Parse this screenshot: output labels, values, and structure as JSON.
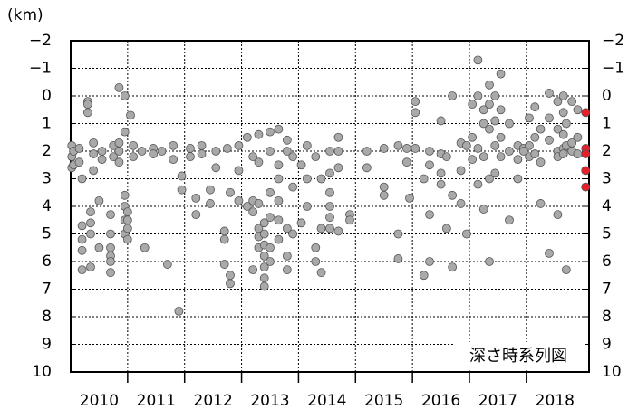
{
  "chart_data": {
    "type": "scatter",
    "y_unit": "(km)",
    "annotation": "深さ時系列図",
    "xlim": [
      2010,
      2019.1
    ],
    "ylim": [
      -2,
      10
    ],
    "y_inverted": true,
    "yticks": [
      {
        "value": -2,
        "label": "−2"
      },
      {
        "value": -1,
        "label": "−1"
      },
      0,
      1,
      2,
      3,
      4,
      5,
      6,
      7,
      8,
      9,
      10
    ],
    "xticks": [
      {
        "value": 2010.5,
        "label": "2010"
      },
      {
        "value": 2011.5,
        "label": "2011"
      },
      {
        "value": 2012.5,
        "label": "2012"
      },
      {
        "value": 2013.5,
        "label": "2013"
      },
      {
        "value": 2014.5,
        "label": "2014"
      },
      {
        "value": 2015.5,
        "label": "2015"
      },
      {
        "value": 2016.5,
        "label": "2016"
      },
      {
        "value": 2017.5,
        "label": "2017"
      },
      {
        "value": 2018.5,
        "label": "2018"
      }
    ],
    "xgrid": [
      2011,
      2012,
      2013,
      2014,
      2015,
      2016,
      2017,
      2018
    ],
    "grid": true,
    "series": [
      {
        "color": "#a9a9a9",
        "x": [
          2010.02,
          2010.02,
          2010.02,
          2010.05,
          2010.05,
          2010.15,
          2010.15,
          2010.2,
          2010.2,
          2010.2,
          2010.2,
          2010.2,
          2010.3,
          2010.3,
          2010.3,
          2010.35,
          2010.35,
          2010.35,
          2010.35,
          2010.4,
          2010.4,
          2010.4,
          2010.5,
          2010.5,
          2010.55,
          2010.55,
          2010.7,
          2010.7,
          2010.7,
          2010.7,
          2010.7,
          2010.7,
          2010.75,
          2010.75,
          2010.85,
          2010.85,
          2010.85,
          2010.85,
          2010.95,
          2010.95,
          2010.95,
          2010.95,
          2010.95,
          2010.95,
          2011.0,
          2011.0,
          2011.0,
          2011.0,
          2011.05,
          2011.1,
          2011.1,
          2011.25,
          2011.3,
          2011.45,
          2011.45,
          2011.6,
          2011.7,
          2011.8,
          2011.8,
          2011.9,
          2011.95,
          2011.95,
          2012.1,
          2012.1,
          2012.2,
          2012.2,
          2012.3,
          2012.3,
          2012.45,
          2012.45,
          2012.55,
          2012.55,
          2012.7,
          2012.7,
          2012.7,
          2012.75,
          2012.8,
          2012.8,
          2012.8,
          2012.95,
          2012.95,
          2012.95,
          2013.1,
          2013.1,
          2013.2,
          2013.2,
          2013.2,
          2013.2,
          2013.3,
          2013.3,
          2013.3,
          2013.3,
          2013.3,
          2013.3,
          2013.4,
          2013.4,
          2013.4,
          2013.4,
          2013.4,
          2013.4,
          2013.4,
          2013.5,
          2013.5,
          2013.5,
          2013.5,
          2013.5,
          2013.5,
          2013.65,
          2013.65,
          2013.65,
          2013.65,
          2013.65,
          2013.65,
          2013.8,
          2013.8,
          2013.8,
          2013.8,
          2013.8,
          2013.9,
          2013.9,
          2013.9,
          2014.05,
          2014.05,
          2014.15,
          2014.15,
          2014.15,
          2014.3,
          2014.3,
          2014.3,
          2014.4,
          2014.4,
          2014.4,
          2014.55,
          2014.55,
          2014.55,
          2014.55,
          2014.55,
          2014.55,
          2014.7,
          2014.7,
          2014.7,
          2014.7,
          2014.9,
          2014.9,
          2015.2,
          2015.2,
          2015.5,
          2015.5,
          2015.5,
          2015.75,
          2015.75,
          2015.75,
          2015.9,
          2015.9,
          2015.95,
          2016.05,
          2016.05,
          2016.05,
          2016.2,
          2016.2,
          2016.3,
          2016.3,
          2016.3,
          2016.3,
          2016.5,
          2016.5,
          2016.5,
          2016.5,
          2016.6,
          2016.6,
          2016.7,
          2016.7,
          2016.7,
          2016.85,
          2016.85,
          2016.85,
          2016.95,
          2016.95,
          2017.05,
          2017.05,
          2017.05,
          2017.15,
          2017.15,
          2017.15,
          2017.15,
          2017.25,
          2017.25,
          2017.25,
          2017.25,
          2017.35,
          2017.35,
          2017.35,
          2017.35,
          2017.35,
          2017.45,
          2017.45,
          2017.45,
          2017.45,
          2017.55,
          2017.55,
          2017.55,
          2017.55,
          2017.7,
          2017.7,
          2017.7,
          2017.85,
          2017.85,
          2017.85,
          2017.95,
          2017.95,
          2018.05,
          2018.05,
          2018.05,
          2018.15,
          2018.15,
          2018.15,
          2018.25,
          2018.25,
          2018.25,
          2018.4,
          2018.4,
          2018.4,
          2018.4,
          2018.55,
          2018.55,
          2018.55,
          2018.55,
          2018.55,
          2018.65,
          2018.65,
          2018.65,
          2018.65,
          2018.65,
          2018.7,
          2018.7,
          2018.7,
          2018.8,
          2018.8,
          2018.8,
          2018.9,
          2018.9,
          2018.9
        ],
        "values": [
          1.8,
          2.2,
          2.6,
          2.0,
          2.5,
          1.9,
          2.4,
          3.0,
          4.7,
          5.2,
          5.6,
          6.3,
          0.2,
          0.3,
          0.6,
          4.2,
          4.6,
          5.0,
          6.2,
          1.7,
          2.1,
          2.7,
          3.8,
          5.5,
          2.0,
          2.3,
          4.3,
          5.0,
          5.5,
          5.8,
          6.0,
          6.4,
          1.8,
          2.2,
          -0.3,
          1.7,
          2.0,
          2.4,
          0.0,
          1.3,
          3.6,
          4.0,
          4.5,
          5.0,
          4.2,
          4.5,
          4.8,
          5.2,
          0.7,
          1.8,
          2.2,
          2.0,
          5.5,
          1.9,
          2.1,
          2.0,
          6.1,
          1.8,
          2.3,
          7.8,
          2.9,
          3.4,
          1.9,
          2.2,
          3.7,
          4.3,
          1.8,
          2.1,
          3.4,
          3.9,
          2.0,
          2.6,
          4.9,
          5.2,
          6.1,
          1.9,
          3.5,
          6.5,
          6.8,
          1.8,
          2.7,
          3.8,
          1.5,
          4.0,
          2.2,
          3.8,
          4.2,
          6.3,
          1.4,
          2.4,
          3.9,
          4.8,
          5.1,
          5.5,
          4.6,
          5.0,
          5.4,
          5.8,
          6.2,
          6.6,
          6.9,
          1.3,
          2.0,
          3.5,
          4.4,
          5.5,
          6.0,
          1.2,
          2.5,
          3.0,
          3.8,
          4.5,
          5.2,
          1.6,
          2.0,
          4.8,
          5.8,
          6.3,
          2.2,
          3.3,
          5.0,
          2.5,
          4.6,
          1.8,
          3.0,
          4.0,
          2.2,
          5.5,
          6.0,
          3.0,
          4.8,
          6.4,
          2.0,
          2.8,
          3.5,
          4.0,
          4.4,
          4.8,
          1.5,
          2.0,
          2.6,
          4.9,
          4.3,
          4.5,
          2.0,
          2.6,
          1.9,
          3.3,
          3.6,
          1.8,
          5.0,
          5.9,
          1.9,
          2.4,
          3.7,
          0.2,
          0.6,
          1.9,
          3.0,
          6.5,
          2.0,
          2.5,
          4.3,
          6.0,
          0.9,
          2.1,
          2.8,
          3.2,
          2.2,
          4.8,
          0.0,
          3.6,
          6.2,
          1.7,
          2.7,
          3.9,
          1.8,
          5.0,
          0.3,
          1.5,
          2.3,
          -1.3,
          0.0,
          1.9,
          3.2,
          0.5,
          1.0,
          2.2,
          4.1,
          -0.4,
          0.3,
          1.2,
          3.0,
          6.0,
          0.0,
          0.9,
          1.8,
          2.8,
          -0.8,
          0.5,
          1.5,
          2.2,
          1.0,
          2.0,
          4.5,
          1.8,
          2.3,
          3.0,
          1.9,
          2.0,
          0.8,
          1.8,
          2.2,
          0.4,
          1.5,
          2.1,
          1.2,
          2.4,
          3.9,
          -0.1,
          0.8,
          1.6,
          5.7,
          0.2,
          1.2,
          2.0,
          2.2,
          4.3,
          0.0,
          0.6,
          1.4,
          1.9,
          2.1,
          1.0,
          1.8,
          6.3,
          0.2,
          1.7,
          2.0,
          0.5,
          1.5,
          2.1
        ]
      },
      {
        "color": "#e8202a",
        "x": [
          2019.04,
          2019.04,
          2019.04,
          2019.04,
          2019.04
        ],
        "values": [
          0.6,
          1.9,
          2.1,
          2.7,
          3.3
        ]
      }
    ]
  }
}
